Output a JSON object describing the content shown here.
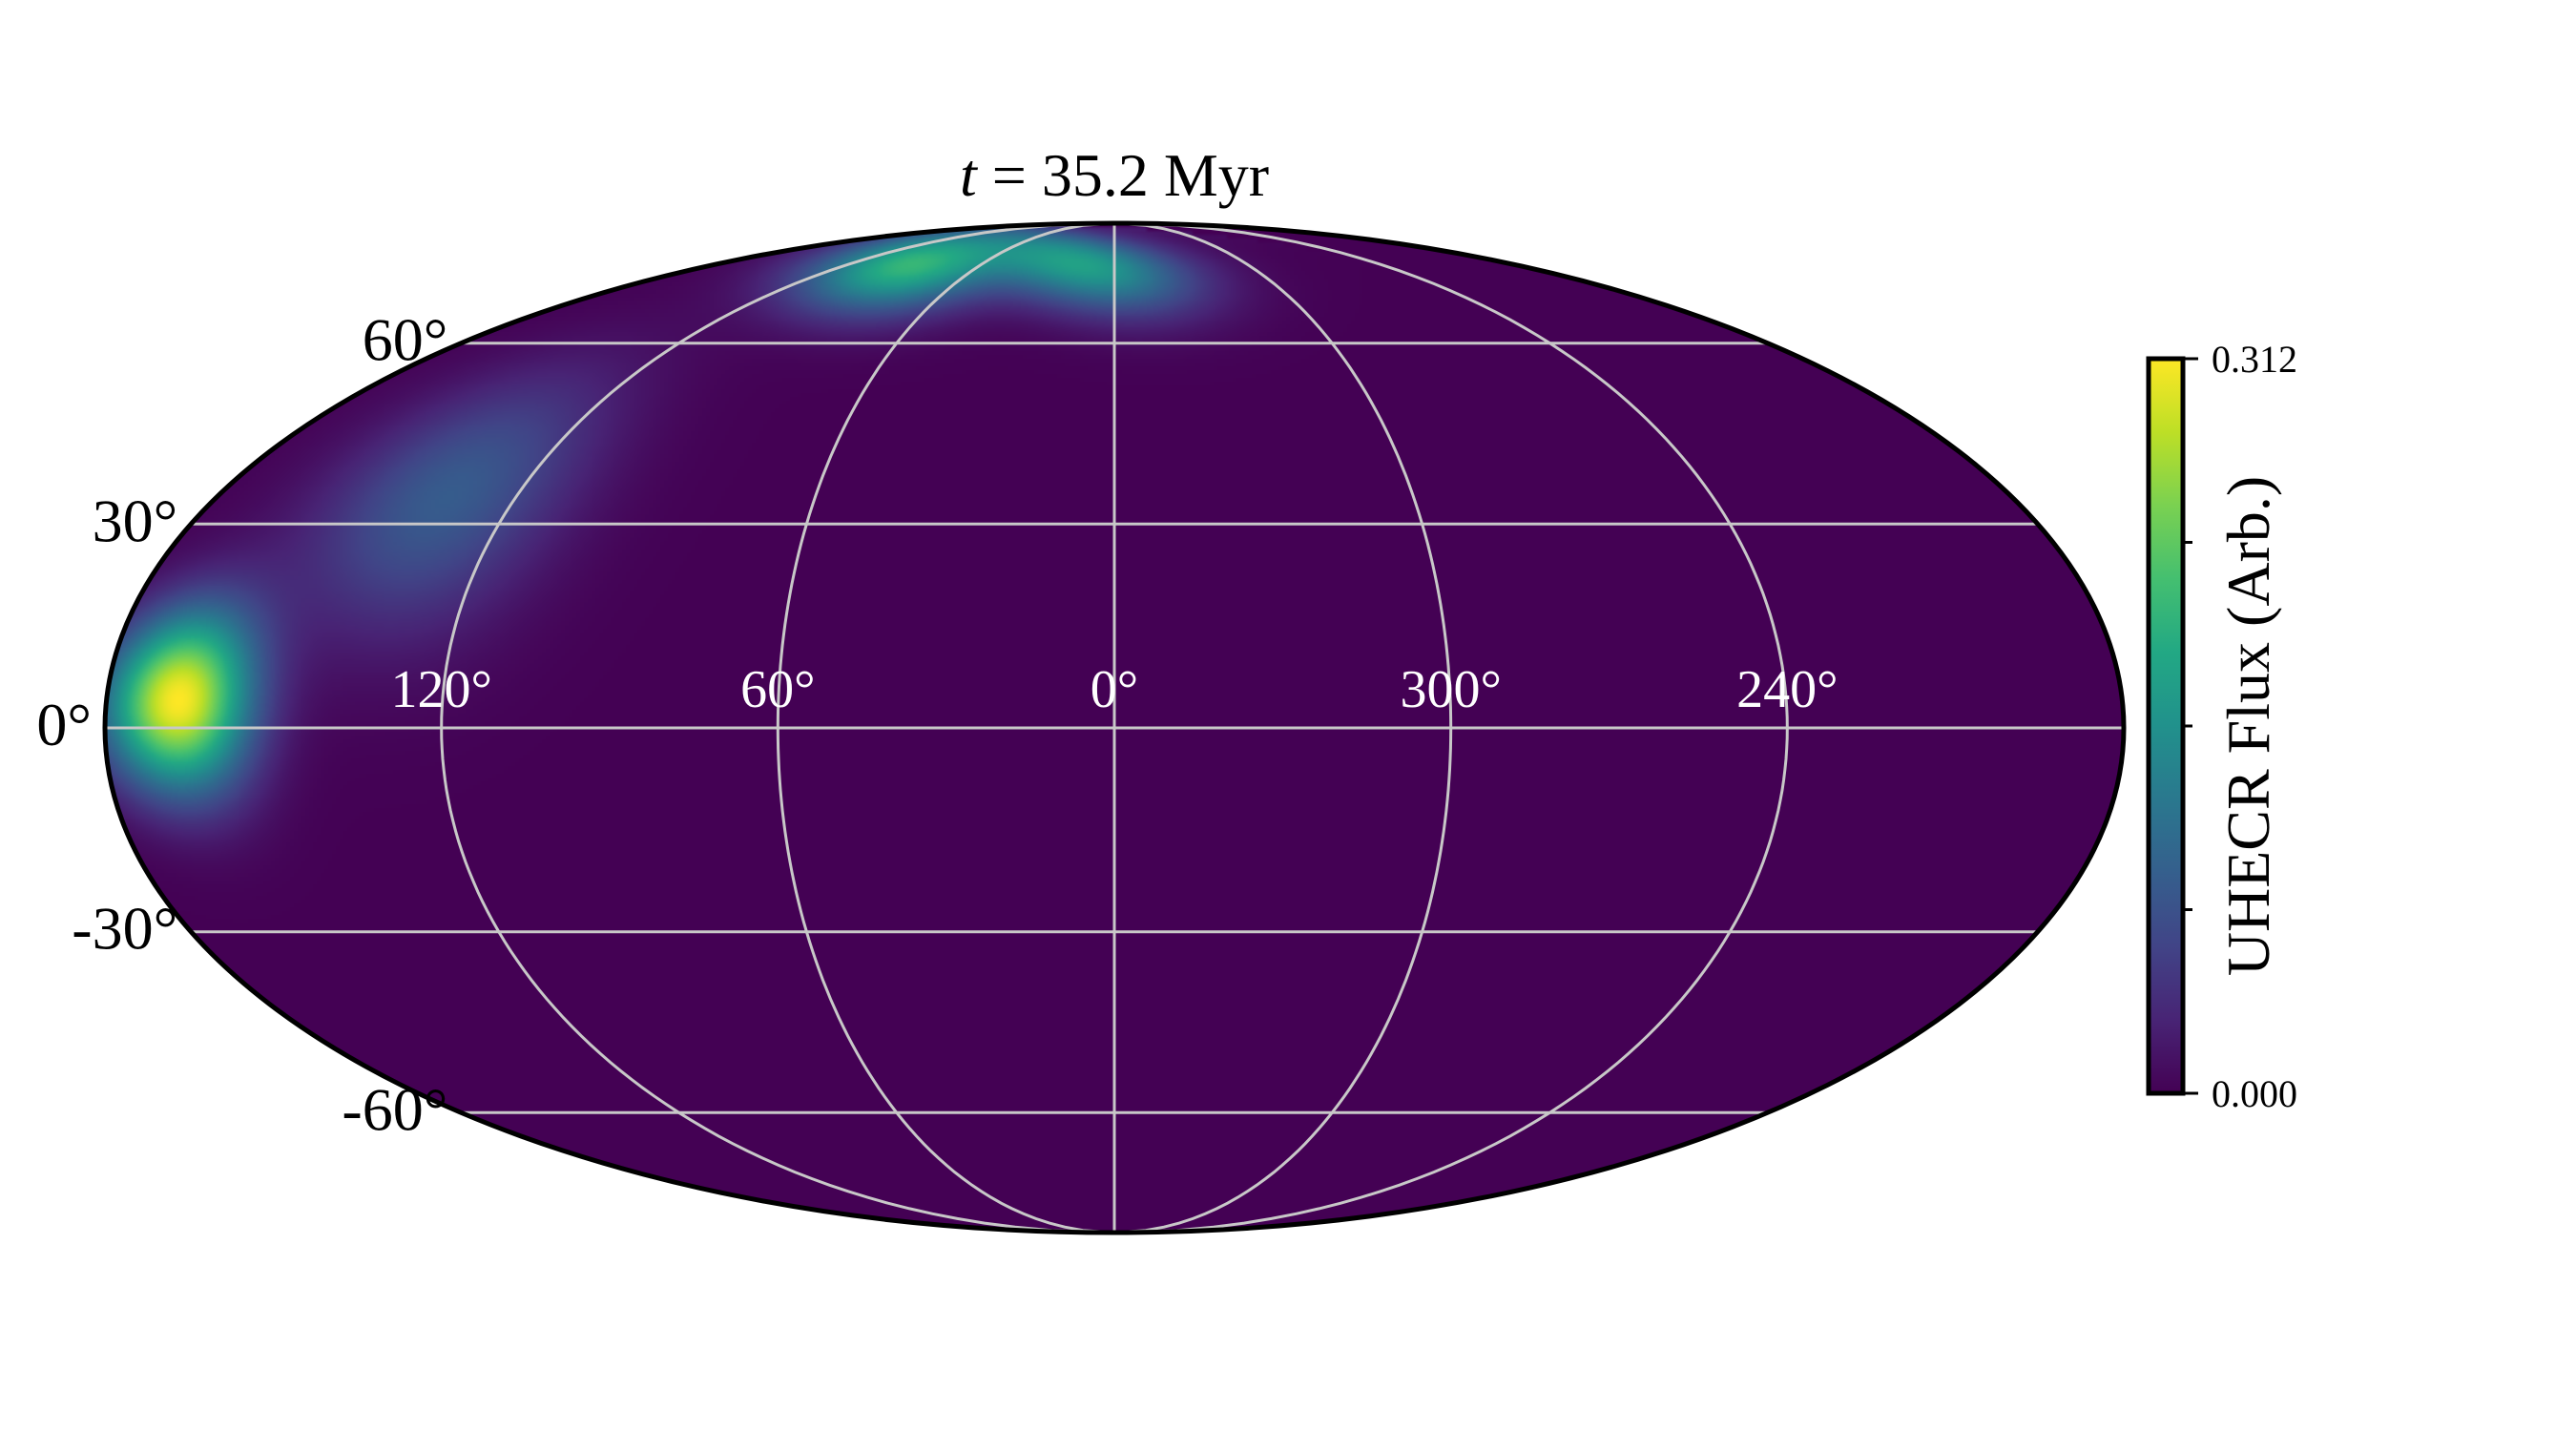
{
  "chart_data": {
    "type": "heatmap",
    "projection": "mollweide",
    "title_prefix": "t",
    "title_rest": " = 35.2 Myr",
    "colorbar": {
      "label": "UHECR Flux (Arb.)",
      "min_label": "0.000",
      "max_label": "0.312",
      "vmin": 0.0,
      "vmax": 0.312,
      "colormap": "viridis",
      "minor_tick_count": 3
    },
    "lat_tick_labels": [
      {
        "lat": 60,
        "text": "60°"
      },
      {
        "lat": 30,
        "text": "30°"
      },
      {
        "lat": 0,
        "text": "0°"
      },
      {
        "lat": -30,
        "text": "-30°"
      },
      {
        "lat": -60,
        "text": "-60°"
      }
    ],
    "lon_tick_labels": [
      {
        "lon": 120,
        "text": "120°"
      },
      {
        "lon": 60,
        "text": "60°"
      },
      {
        "lon": 0,
        "text": "0°"
      },
      {
        "lon": 300,
        "text": "300°"
      },
      {
        "lon": 240,
        "text": "240°"
      }
    ],
    "grid": true,
    "grid_lat_lines": [
      -60,
      -30,
      0,
      30,
      60
    ],
    "grid_lon_lines": [
      -120,
      -60,
      0,
      60,
      120
    ],
    "flux_hotspots": [
      {
        "lon_deg": 146,
        "lat_deg": 4,
        "peak": 0.312,
        "sigma_deg": 9
      },
      {
        "lon_deg": 110,
        "lat_deg": 34,
        "peak": 0.09,
        "sigma_deg": 14
      },
      {
        "lon_deg": 40,
        "lat_deg": 76,
        "peak": 0.2,
        "sigma_deg": 7
      },
      {
        "lon_deg": -40,
        "lat_deg": 76,
        "peak": 0.17,
        "sigma_deg": 7
      }
    ],
    "background_value": 0.0
  }
}
